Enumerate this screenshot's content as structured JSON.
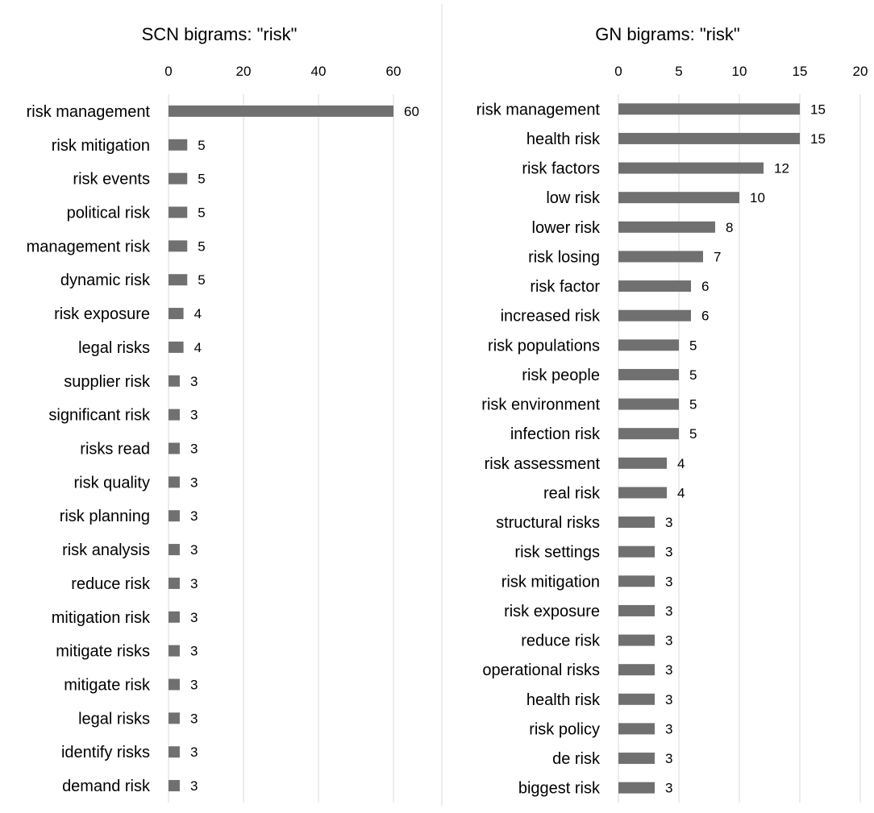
{
  "chart_data": [
    {
      "type": "bar",
      "orientation": "horizontal",
      "title": "SCN bigrams: \"risk\"",
      "xlim": [
        0,
        60
      ],
      "xticks": [
        "0",
        "20",
        "40",
        "60"
      ],
      "grid": true,
      "categories": [
        "risk management",
        "risk mitigation",
        "risk events",
        "political risk",
        "management risk",
        "dynamic risk",
        "risk exposure",
        "legal risks",
        "supplier risk",
        "significant risk",
        "risks read",
        "risk quality",
        "risk planning",
        "risk analysis",
        "reduce risk",
        "mitigation risk",
        "mitigate risks",
        "mitigate risk",
        "legal risks",
        "identify risks",
        "demand risk"
      ],
      "values": [
        60,
        5,
        5,
        5,
        5,
        5,
        4,
        4,
        3,
        3,
        3,
        3,
        3,
        3,
        3,
        3,
        3,
        3,
        3,
        3,
        3
      ],
      "bar_color": "#707070"
    },
    {
      "type": "bar",
      "orientation": "horizontal",
      "title": "GN bigrams: \"risk\"",
      "xlim": [
        0,
        20
      ],
      "xticks": [
        "0",
        "5",
        "10",
        "15",
        "20"
      ],
      "grid": true,
      "categories": [
        "risk management",
        "health risk",
        "risk factors",
        "low risk",
        "lower risk",
        "risk losing",
        "risk factor",
        "increased risk",
        "risk populations",
        "risk people",
        "risk environment",
        "infection risk",
        "risk assessment",
        "real risk",
        "structural risks",
        "risk settings",
        "risk mitigation",
        "risk exposure",
        "reduce risk",
        "operational risks",
        "health risk",
        "risk policy",
        "de risk",
        "biggest risk"
      ],
      "values": [
        15,
        15,
        12,
        10,
        8,
        7,
        6,
        6,
        5,
        5,
        5,
        5,
        4,
        4,
        3,
        3,
        3,
        3,
        3,
        3,
        3,
        3,
        3,
        3
      ],
      "bar_color": "#707070"
    }
  ]
}
